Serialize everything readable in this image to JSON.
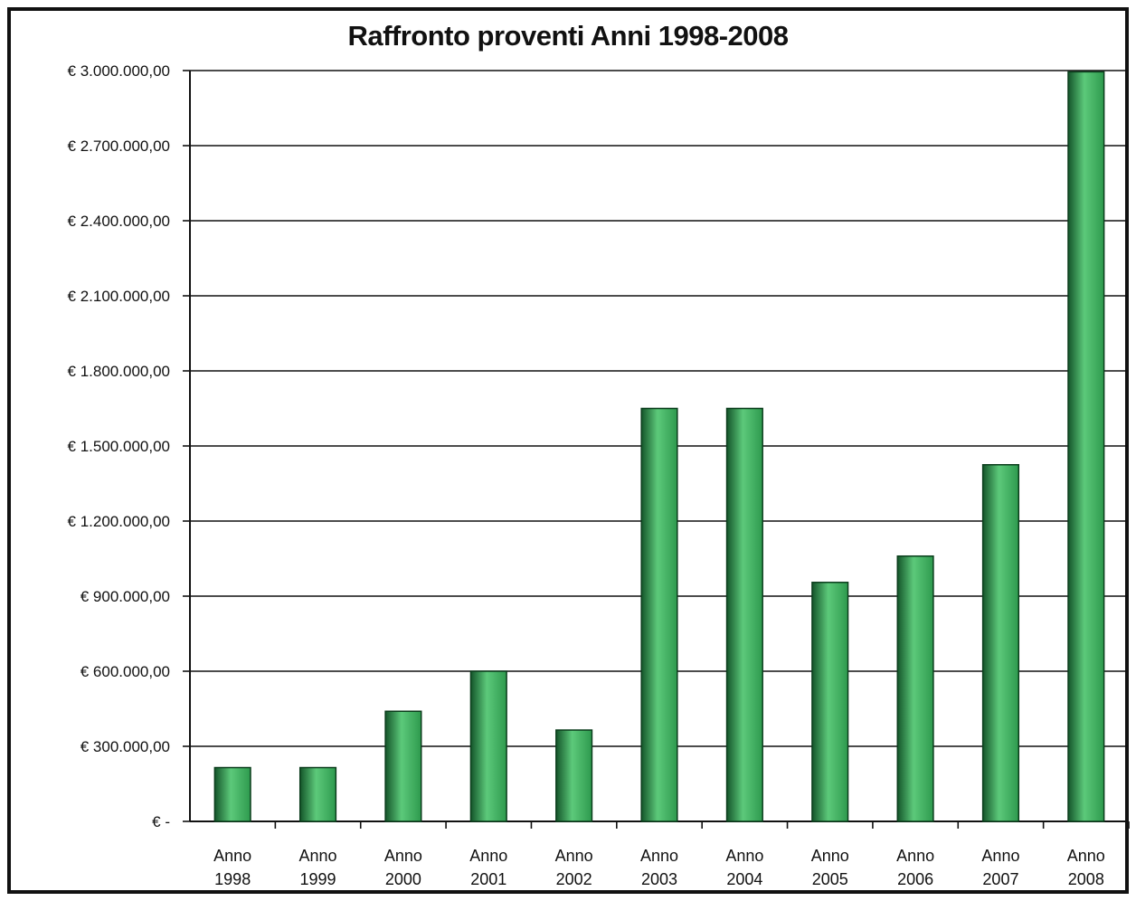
{
  "chart_data": {
    "type": "bar",
    "title": "Raffronto proventi Anni 1998-2008",
    "xlabel": "",
    "ylabel": "",
    "ylim": [
      0,
      3000000
    ],
    "yticks": [
      0,
      300000,
      600000,
      900000,
      1200000,
      1500000,
      1800000,
      2100000,
      2400000,
      2700000,
      3000000
    ],
    "ytick_labels": [
      "€ -",
      "€ 300.000,00",
      "€ 600.000,00",
      "€ 900.000,00",
      "€ 1.200.000,00",
      "€ 1.500.000,00",
      "€ 1.800.000,00",
      "€ 2.100.000,00",
      "€ 2.400.000,00",
      "€ 2.700.000,00",
      "€ 3.000.000,00"
    ],
    "categories": [
      "Anno 1998",
      "Anno 1999",
      "Anno 2000",
      "Anno 2001",
      "Anno 2002",
      "Anno 2003",
      "Anno 2004",
      "Anno 2005",
      "Anno 2006",
      "Anno 2007",
      "Anno 2008"
    ],
    "values": [
      215000,
      215000,
      440000,
      600000,
      365000,
      1650000,
      1650000,
      955000,
      1060000,
      1425000,
      2995000
    ],
    "grid": true,
    "legend": "none",
    "colors": {
      "bar": "#2e9a4e",
      "bar_dark": "#14552a",
      "bar_light": "#5cc97a",
      "grid": "#111111"
    }
  }
}
